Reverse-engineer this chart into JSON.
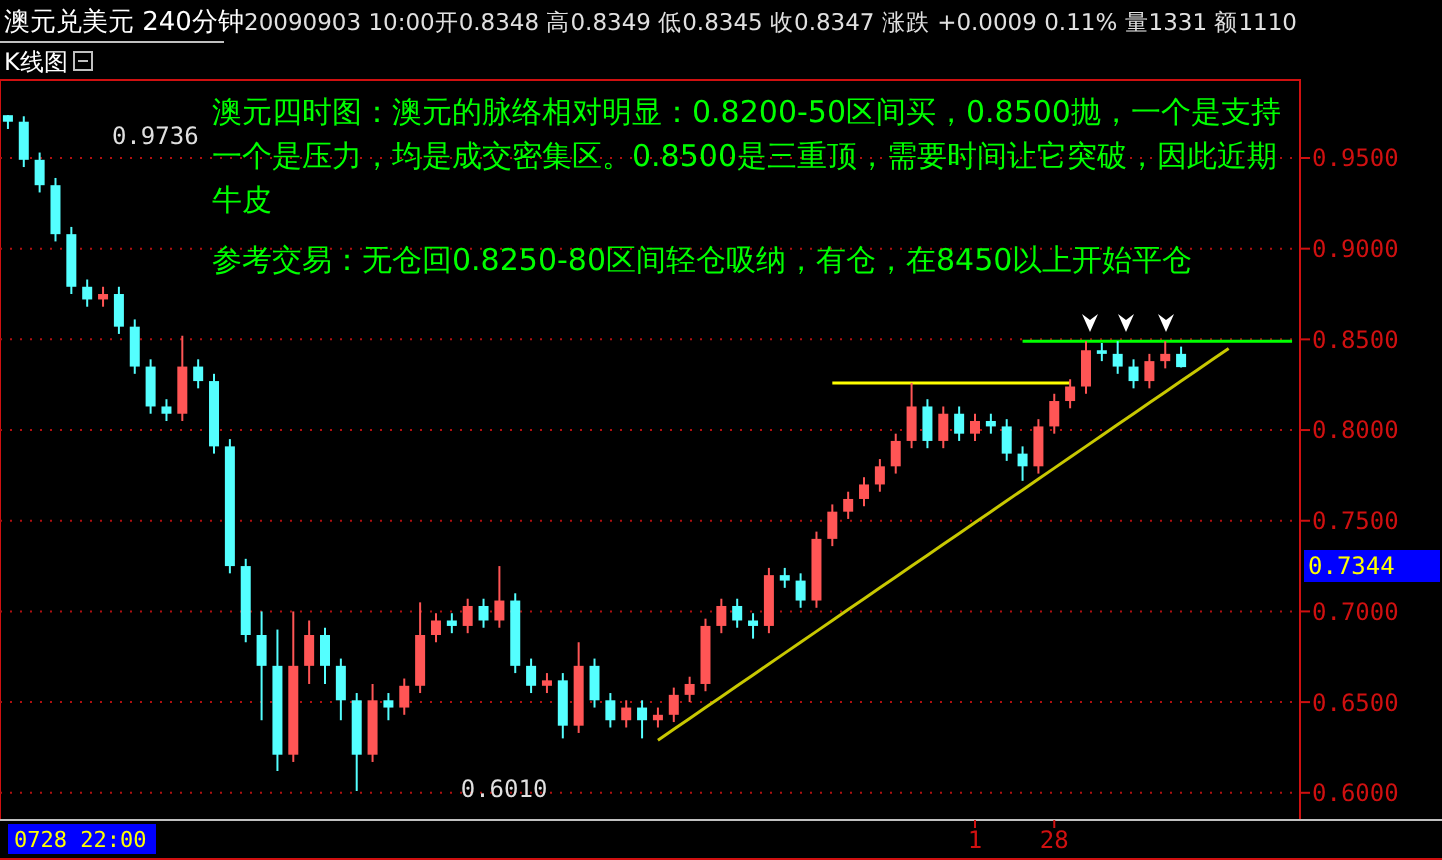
{
  "chart_data": {
    "type": "candlestick",
    "title": "澳元兑美元 240分钟",
    "subtitle": "20090903 10:00开0.8348 高0.8349 低0.8345 收0.8347 涨跌 +0.0009 0.11% 量1331 额1110",
    "categories": [
      null,
      null,
      null,
      null,
      null,
      null,
      null,
      null,
      null,
      null,
      null,
      null,
      null,
      null,
      null,
      null,
      null,
      null,
      null,
      null,
      null,
      null,
      null,
      null,
      null,
      null,
      null,
      null,
      null,
      null,
      null,
      null,
      null,
      null,
      null,
      null,
      null,
      null,
      null,
      null,
      null,
      null,
      null,
      null,
      null,
      null,
      null,
      null,
      null,
      null,
      null,
      null,
      null,
      null,
      null,
      null,
      null,
      null,
      null,
      null,
      null,
      "1",
      null,
      null,
      null,
      null,
      "28",
      null,
      null,
      null,
      null,
      null,
      null,
      null,
      null,
      null,
      null,
      null,
      null,
      null,
      null,
      null
    ],
    "ohlc": [
      [
        0.9736,
        0.9736,
        0.966,
        0.97
      ],
      [
        0.97,
        0.973,
        0.945,
        0.949
      ],
      [
        0.949,
        0.953,
        0.931,
        0.935
      ],
      [
        0.935,
        0.939,
        0.904,
        0.908
      ],
      [
        0.908,
        0.912,
        0.875,
        0.879
      ],
      [
        0.879,
        0.883,
        0.868,
        0.872
      ],
      [
        0.872,
        0.879,
        0.868,
        0.875
      ],
      [
        0.875,
        0.879,
        0.853,
        0.857
      ],
      [
        0.857,
        0.861,
        0.831,
        0.835
      ],
      [
        0.835,
        0.839,
        0.809,
        0.813
      ],
      [
        0.813,
        0.817,
        0.805,
        0.809
      ],
      [
        0.809,
        0.852,
        0.805,
        0.835
      ],
      [
        0.835,
        0.839,
        0.823,
        0.827
      ],
      [
        0.827,
        0.831,
        0.787,
        0.791
      ],
      [
        0.791,
        0.795,
        0.721,
        0.725
      ],
      [
        0.725,
        0.729,
        0.683,
        0.687
      ],
      [
        0.687,
        0.7,
        0.64,
        0.67
      ],
      [
        0.67,
        0.69,
        0.612,
        0.621
      ],
      [
        0.621,
        0.7,
        0.617,
        0.67
      ],
      [
        0.67,
        0.695,
        0.66,
        0.687
      ],
      [
        0.687,
        0.691,
        0.66,
        0.67
      ],
      [
        0.67,
        0.674,
        0.64,
        0.651
      ],
      [
        0.651,
        0.655,
        0.601,
        0.621
      ],
      [
        0.621,
        0.66,
        0.617,
        0.651
      ],
      [
        0.651,
        0.655,
        0.64,
        0.647
      ],
      [
        0.647,
        0.663,
        0.643,
        0.659
      ],
      [
        0.659,
        0.705,
        0.655,
        0.687
      ],
      [
        0.687,
        0.699,
        0.683,
        0.695
      ],
      [
        0.695,
        0.699,
        0.688,
        0.692
      ],
      [
        0.692,
        0.707,
        0.688,
        0.703
      ],
      [
        0.703,
        0.707,
        0.691,
        0.695
      ],
      [
        0.695,
        0.725,
        0.691,
        0.706
      ],
      [
        0.706,
        0.71,
        0.666,
        0.67
      ],
      [
        0.67,
        0.674,
        0.655,
        0.659
      ],
      [
        0.659,
        0.666,
        0.655,
        0.662
      ],
      [
        0.662,
        0.666,
        0.63,
        0.637
      ],
      [
        0.637,
        0.683,
        0.633,
        0.67
      ],
      [
        0.67,
        0.674,
        0.647,
        0.651
      ],
      [
        0.651,
        0.655,
        0.636,
        0.64
      ],
      [
        0.64,
        0.651,
        0.636,
        0.647
      ],
      [
        0.647,
        0.651,
        0.63,
        0.64
      ],
      [
        0.64,
        0.647,
        0.636,
        0.643
      ],
      [
        0.643,
        0.658,
        0.639,
        0.654
      ],
      [
        0.654,
        0.664,
        0.65,
        0.66
      ],
      [
        0.66,
        0.696,
        0.656,
        0.692
      ],
      [
        0.692,
        0.707,
        0.688,
        0.703
      ],
      [
        0.703,
        0.707,
        0.691,
        0.695
      ],
      [
        0.695,
        0.699,
        0.685,
        0.692
      ],
      [
        0.692,
        0.724,
        0.688,
        0.72
      ],
      [
        0.72,
        0.724,
        0.713,
        0.717
      ],
      [
        0.717,
        0.721,
        0.702,
        0.706
      ],
      [
        0.706,
        0.744,
        0.702,
        0.74
      ],
      [
        0.74,
        0.759,
        0.736,
        0.755
      ],
      [
        0.755,
        0.766,
        0.751,
        0.762
      ],
      [
        0.762,
        0.774,
        0.758,
        0.77
      ],
      [
        0.77,
        0.784,
        0.766,
        0.78
      ],
      [
        0.78,
        0.798,
        0.776,
        0.794
      ],
      [
        0.794,
        0.826,
        0.79,
        0.813
      ],
      [
        0.813,
        0.817,
        0.79,
        0.794
      ],
      [
        0.794,
        0.813,
        0.79,
        0.809
      ],
      [
        0.809,
        0.813,
        0.794,
        0.798
      ],
      [
        0.798,
        0.809,
        0.794,
        0.805
      ],
      [
        0.805,
        0.809,
        0.798,
        0.802
      ],
      [
        0.802,
        0.806,
        0.783,
        0.787
      ],
      [
        0.787,
        0.791,
        0.772,
        0.78
      ],
      [
        0.78,
        0.806,
        0.776,
        0.802
      ],
      [
        0.802,
        0.82,
        0.798,
        0.816
      ],
      [
        0.816,
        0.828,
        0.812,
        0.824
      ],
      [
        0.824,
        0.849,
        0.82,
        0.844
      ],
      [
        0.844,
        0.848,
        0.838,
        0.842
      ],
      [
        0.842,
        0.849,
        0.831,
        0.835
      ],
      [
        0.835,
        0.839,
        0.823,
        0.827
      ],
      [
        0.827,
        0.842,
        0.823,
        0.838
      ],
      [
        0.838,
        0.849,
        0.834,
        0.842
      ],
      [
        0.842,
        0.846,
        0.8345,
        0.8347
      ],
      null,
      null,
      null,
      null,
      null,
      null,
      null
    ],
    "series": [
      {
        "type": "line",
        "color": "#c8c800",
        "values": [
          null,
          null,
          null,
          null,
          null,
          null,
          null,
          null,
          null,
          null,
          null,
          null,
          null,
          null,
          null,
          null,
          null,
          null,
          null,
          null,
          null,
          null,
          null,
          null,
          null,
          null,
          null,
          null,
          null,
          null,
          null,
          null,
          null,
          null,
          null,
          null,
          null,
          null,
          null,
          null,
          null,
          0.629,
          0.635,
          0.641,
          0.647,
          0.653,
          0.659,
          0.665,
          0.671,
          0.677,
          0.683,
          0.689,
          0.695,
          0.701,
          0.707,
          0.713,
          0.719,
          0.725,
          0.731,
          0.737,
          0.743,
          0.749,
          0.755,
          0.761,
          0.767,
          0.773,
          0.779,
          0.785,
          0.791,
          0.797,
          0.803,
          0.809,
          0.815,
          0.821,
          0.827,
          0.833,
          0.839,
          0.845,
          null,
          null,
          null,
          null
        ]
      },
      {
        "type": "line",
        "color": "#ffff00",
        "values": [
          null,
          null,
          null,
          null,
          null,
          null,
          null,
          null,
          null,
          null,
          null,
          null,
          null,
          null,
          null,
          null,
          null,
          null,
          null,
          null,
          null,
          null,
          null,
          null,
          null,
          null,
          null,
          null,
          null,
          null,
          null,
          null,
          null,
          null,
          null,
          null,
          null,
          null,
          null,
          null,
          null,
          null,
          null,
          null,
          null,
          null,
          null,
          null,
          null,
          null,
          null,
          null,
          0.826,
          0.826,
          0.826,
          0.826,
          0.826,
          0.826,
          0.826,
          0.826,
          0.826,
          0.826,
          0.826,
          0.826,
          0.826,
          0.826,
          0.826,
          0.826,
          null,
          null,
          null,
          null,
          null,
          null,
          null,
          null,
          null,
          null,
          null,
          null,
          null,
          null
        ]
      },
      {
        "type": "line",
        "color": "#00ff00",
        "values": [
          null,
          null,
          null,
          null,
          null,
          null,
          null,
          null,
          null,
          null,
          null,
          null,
          null,
          null,
          null,
          null,
          null,
          null,
          null,
          null,
          null,
          null,
          null,
          null,
          null,
          null,
          null,
          null,
          null,
          null,
          null,
          null,
          null,
          null,
          null,
          null,
          null,
          null,
          null,
          null,
          null,
          null,
          null,
          null,
          null,
          null,
          null,
          null,
          null,
          null,
          null,
          null,
          null,
          null,
          null,
          null,
          null,
          null,
          null,
          null,
          null,
          null,
          null,
          null,
          0.849,
          0.849,
          0.849,
          0.849,
          0.849,
          0.849,
          0.849,
          0.849,
          0.849,
          0.849,
          0.849,
          0.849,
          0.849,
          0.849,
          0.849,
          0.849,
          0.849,
          0.849
        ]
      }
    ],
    "ylim": [
      0.585,
      0.993
    ],
    "yticks": [
      {
        "value": 0.6,
        "label": "0.6000"
      },
      {
        "value": 0.65,
        "label": "0.6500"
      },
      {
        "value": 0.7,
        "label": "0.7000"
      },
      {
        "value": 0.75,
        "label": "0.7500"
      },
      {
        "value": 0.8,
        "label": "0.8000"
      },
      {
        "value": 0.85,
        "label": "0.8500"
      },
      {
        "value": 0.9,
        "label": "0.9000"
      },
      {
        "value": 0.95,
        "label": "0.9500"
      }
    ],
    "grid": "y",
    "annotations": [
      "K线图",
      "澳元四时图：澳元的脉络相对明显：0.8200-50区间买，0.8500抛，一个是支持一个是压力，均是成交密集区。0.8500是三重顶，需要时间让它突破，因此近期牛皮",
      "参考交易：无仓回0.8250-80区间轻仓吸纳，有仓，在8450以上开始平仓",
      "0.9736",
      "0.6010",
      "0.7344",
      "0728 22:00"
    ]
  }
}
